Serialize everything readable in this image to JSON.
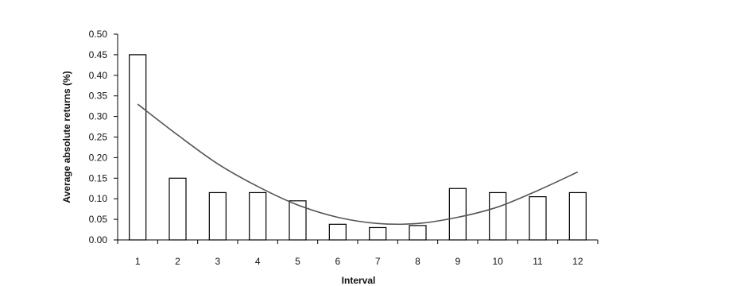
{
  "chart_data": {
    "type": "bar",
    "categories": [
      "1",
      "2",
      "3",
      "4",
      "5",
      "6",
      "7",
      "8",
      "9",
      "10",
      "11",
      "12"
    ],
    "values": [
      0.45,
      0.15,
      0.115,
      0.115,
      0.095,
      0.038,
      0.03,
      0.035,
      0.125,
      0.115,
      0.105,
      0.115
    ],
    "trendline": {
      "type": "polynomial",
      "x": [
        1,
        2,
        3,
        4,
        5,
        6,
        7,
        8,
        9,
        10,
        11,
        12
      ],
      "y": [
        0.33,
        0.255,
        0.185,
        0.13,
        0.085,
        0.055,
        0.04,
        0.04,
        0.055,
        0.08,
        0.12,
        0.165
      ]
    },
    "title": "",
    "xlabel": "Interval",
    "ylabel": "Average absolute returns (%)",
    "ylim": [
      0,
      0.5
    ],
    "yticks": [
      "0.00",
      "0.05",
      "0.10",
      "0.15",
      "0.20",
      "0.25",
      "0.30",
      "0.35",
      "0.40",
      "0.45",
      "0.50"
    ],
    "grid": false,
    "legend": "none",
    "colors": {
      "bar_fill": "#ffffff",
      "bar_stroke": "#000000",
      "trend": "#555555",
      "axis": "#000000"
    }
  }
}
